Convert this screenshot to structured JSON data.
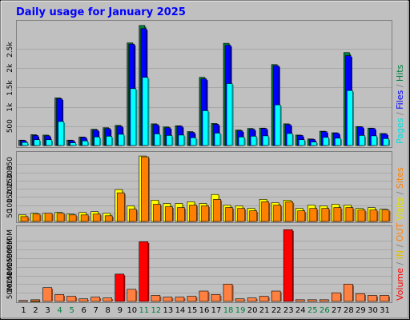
{
  "title": "Daily usage for January 2025",
  "colors": {
    "background": "#c0c0c0",
    "title": "#0000ff",
    "hits": "#008040",
    "files": "#0000ff",
    "pages": "#00ffff",
    "visits": "#ffff00",
    "sites": "#ff8000",
    "volume": "#ff0000",
    "kb_in": "#ffbf00",
    "kb_out": "#ff8000",
    "weekend_label": "#008040"
  },
  "right_labels": {
    "top": [
      "Pages",
      " / ",
      "Files",
      " / ",
      "Hits"
    ],
    "mid": [
      "Visits",
      " / ",
      "Sites"
    ],
    "bot": [
      "Volume",
      " / ",
      "IN",
      " / ",
      "OUT"
    ]
  },
  "chart_data": [
    {
      "type": "bar",
      "name": "hits_files_pages",
      "categories": [
        "1",
        "2",
        "3",
        "4",
        "5",
        "6",
        "7",
        "8",
        "9",
        "10",
        "11",
        "12",
        "13",
        "14",
        "15",
        "16",
        "17",
        "18",
        "19",
        "20",
        "21",
        "22",
        "23",
        "24",
        "25",
        "26",
        "27",
        "28",
        "29",
        "30",
        "31"
      ],
      "weekend_days": [
        "4",
        "5",
        "11",
        "12",
        "18",
        "19",
        "25",
        "26"
      ],
      "ylim": [
        0,
        3200
      ],
      "yticks": [
        "500",
        "1k",
        "1.5k",
        "2k",
        "2.5k"
      ],
      "ytick_values": [
        500,
        1000,
        1500,
        2000,
        2500
      ],
      "series": [
        {
          "name": "Hits",
          "values": [
            140,
            280,
            270,
            1230,
            140,
            220,
            420,
            460,
            520,
            2650,
            3100,
            560,
            480,
            510,
            360,
            1760,
            570,
            2640,
            400,
            440,
            450,
            2090,
            560,
            270,
            170,
            370,
            330,
            2400,
            490,
            450,
            310
          ]
        },
        {
          "name": "Files",
          "values": [
            130,
            260,
            250,
            1210,
            130,
            210,
            400,
            440,
            500,
            2620,
            3020,
            540,
            460,
            500,
            340,
            1720,
            550,
            2590,
            380,
            420,
            440,
            2060,
            540,
            260,
            160,
            360,
            320,
            2320,
            480,
            440,
            300
          ]
        },
        {
          "name": "Pages",
          "values": [
            80,
            150,
            150,
            620,
            70,
            120,
            220,
            240,
            290,
            1470,
            1760,
            300,
            260,
            270,
            200,
            900,
            320,
            1600,
            220,
            240,
            250,
            1050,
            310,
            150,
            90,
            210,
            190,
            1420,
            260,
            250,
            180
          ]
        }
      ]
    },
    {
      "type": "bar",
      "name": "visits_sites",
      "categories": [
        "1",
        "2",
        "3",
        "4",
        "5",
        "6",
        "7",
        "8",
        "9",
        "10",
        "11",
        "12",
        "13",
        "14",
        "15",
        "16",
        "17",
        "18",
        "19",
        "20",
        "21",
        "22",
        "23",
        "24",
        "25",
        "26",
        "27",
        "28",
        "29",
        "30",
        "31"
      ],
      "ylim": [
        0,
        420
      ],
      "yticks": [
        "50",
        "100",
        "150",
        "200",
        "250",
        "300",
        "350"
      ],
      "ytick_values": [
        50,
        100,
        150,
        200,
        250,
        300,
        350
      ],
      "series": [
        {
          "name": "Visits",
          "values": [
            40,
            50,
            50,
            55,
            45,
            55,
            60,
            50,
            195,
            95,
            400,
            130,
            110,
            110,
            120,
            110,
            165,
            100,
            95,
            80,
            135,
            115,
            130,
            80,
            100,
            95,
            105,
            100,
            80,
            85,
            75
          ]
        },
        {
          "name": "Sites",
          "values": [
            30,
            45,
            50,
            50,
            40,
            40,
            45,
            35,
            175,
            75,
            395,
            105,
            90,
            85,
            100,
            95,
            135,
            85,
            80,
            65,
            120,
            100,
            120,
            65,
            80,
            80,
            85,
            85,
            70,
            70,
            70
          ]
        }
      ]
    },
    {
      "type": "bar",
      "name": "volume",
      "categories": [
        "1",
        "2",
        "3",
        "4",
        "5",
        "6",
        "7",
        "8",
        "9",
        "10",
        "11",
        "12",
        "13",
        "14",
        "15",
        "16",
        "17",
        "18",
        "19",
        "20",
        "21",
        "22",
        "23",
        "24",
        "25",
        "26",
        "27",
        "28",
        "29",
        "30",
        "31"
      ],
      "ylim": [
        0,
        430
      ],
      "yticks": [
        "50M",
        "100M",
        "150M",
        "200M",
        "250M",
        "300M",
        "350M"
      ],
      "ytick_values": [
        50,
        100,
        150,
        200,
        250,
        300,
        350
      ],
      "series": [
        {
          "name": "KB In",
          "values": [
            0,
            2,
            0,
            0,
            0,
            0,
            0,
            0,
            0,
            0,
            0,
            0,
            0,
            0,
            0,
            0,
            0,
            0,
            0,
            0,
            0,
            0,
            0,
            0,
            0,
            0,
            0,
            0,
            0,
            0,
            0
          ]
        },
        {
          "name": "KB Out",
          "values": [
            0,
            0,
            0,
            0,
            0,
            0,
            0,
            0,
            0,
            0,
            0,
            0,
            0,
            0,
            0,
            0,
            0,
            0,
            0,
            0,
            0,
            0,
            0,
            0,
            0,
            0,
            0,
            0,
            0,
            0,
            0
          ]
        },
        {
          "name": "Volume",
          "values": [
            5,
            10,
            80,
            40,
            30,
            15,
            25,
            20,
            158,
            70,
            345,
            35,
            25,
            25,
            30,
            60,
            40,
            100,
            15,
            20,
            30,
            60,
            415,
            10,
            10,
            10,
            50,
            100,
            45,
            35,
            35
          ]
        }
      ]
    }
  ]
}
